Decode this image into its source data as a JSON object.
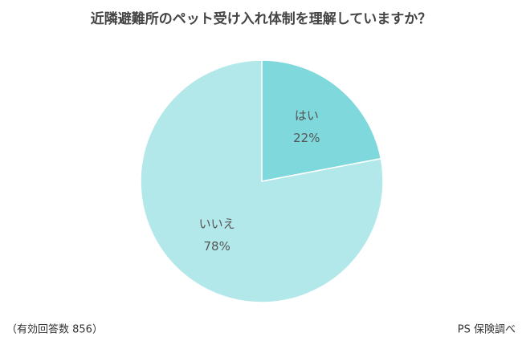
{
  "chart_data": {
    "type": "pie",
    "title": "近隣避難所のペット受け入れ体制を理解していますか？",
    "categories": [
      "はい",
      "いいえ"
    ],
    "values": [
      22,
      78
    ],
    "value_labels": [
      "22%",
      "78%"
    ],
    "colors": [
      "#7fd8dc",
      "#b3e8ea"
    ],
    "note": "（有効回答数 856）",
    "source": "PS 保険調べ"
  }
}
